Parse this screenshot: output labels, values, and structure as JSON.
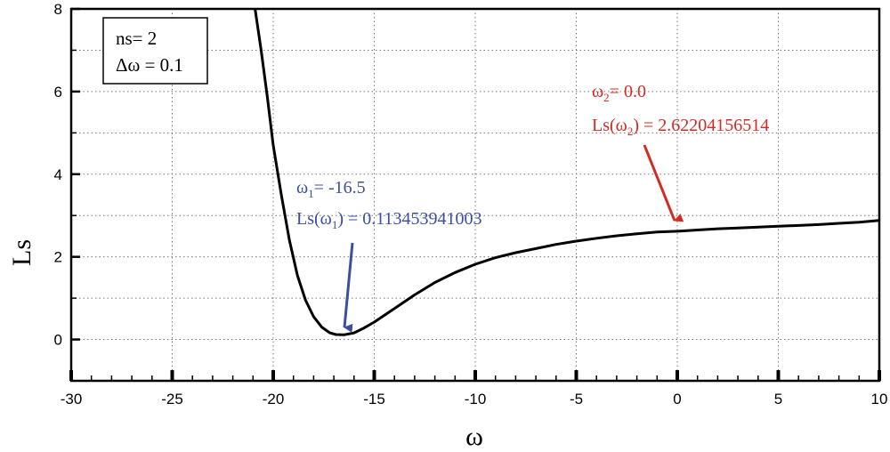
{
  "chart_data": {
    "type": "line",
    "xlabel": "ω",
    "ylabel": "Ls",
    "xlim": [
      -30,
      10
    ],
    "ylim": [
      -1,
      8
    ],
    "x_ticks": [
      -30,
      -25,
      -20,
      -15,
      -10,
      -5,
      0,
      5,
      10
    ],
    "y_ticks": [
      0,
      2,
      4,
      6,
      8
    ],
    "grid": true,
    "legend_box": {
      "ns_text": "ns= 2",
      "dw_text": "Δω = 0.1"
    },
    "series": [
      {
        "name": "Ls(ω)",
        "color": "#000000",
        "x": [
          -20.9,
          -20.6,
          -20.3,
          -20.0,
          -19.6,
          -19.2,
          -18.8,
          -18.4,
          -18.0,
          -17.6,
          -17.2,
          -16.9,
          -16.5,
          -16.0,
          -15.5,
          -15.0,
          -14.0,
          -13.0,
          -12.0,
          -11.0,
          -10.0,
          -9.0,
          -8.0,
          -7.0,
          -6.0,
          -5.0,
          -4.0,
          -3.0,
          -2.0,
          -1.0,
          0.0,
          1.0,
          2.0,
          3.0,
          4.0,
          5.0,
          6.0,
          7.0,
          8.0,
          9.0,
          10.0
        ],
        "y": [
          8.0,
          7.0,
          5.9,
          4.7,
          3.5,
          2.4,
          1.55,
          0.95,
          0.55,
          0.3,
          0.16,
          0.12,
          0.113,
          0.16,
          0.28,
          0.42,
          0.75,
          1.08,
          1.38,
          1.62,
          1.82,
          1.98,
          2.1,
          2.2,
          2.3,
          2.38,
          2.45,
          2.51,
          2.56,
          2.6,
          2.62,
          2.65,
          2.68,
          2.7,
          2.72,
          2.74,
          2.76,
          2.78,
          2.81,
          2.84,
          2.88
        ]
      }
    ],
    "annotations": [
      {
        "color": "#3b4fa0",
        "line1_sym": "ω",
        "line1_sub": "1",
        "line1_rest": "= -16.5",
        "line2_pre": "Ls(ω",
        "line2_sub": "1",
        "line2_rest": ") = 0.113453941003",
        "target": [
          -16.5,
          0.113
        ]
      },
      {
        "color": "#d42a22",
        "line1_sym": "ω",
        "line1_sub": "2",
        "line1_rest": "= 0.0",
        "line2_pre": "Ls(ω",
        "line2_sub": "2",
        "line2_rest": ") = 2.62204156514",
        "target": [
          0.0,
          2.622
        ]
      }
    ]
  }
}
